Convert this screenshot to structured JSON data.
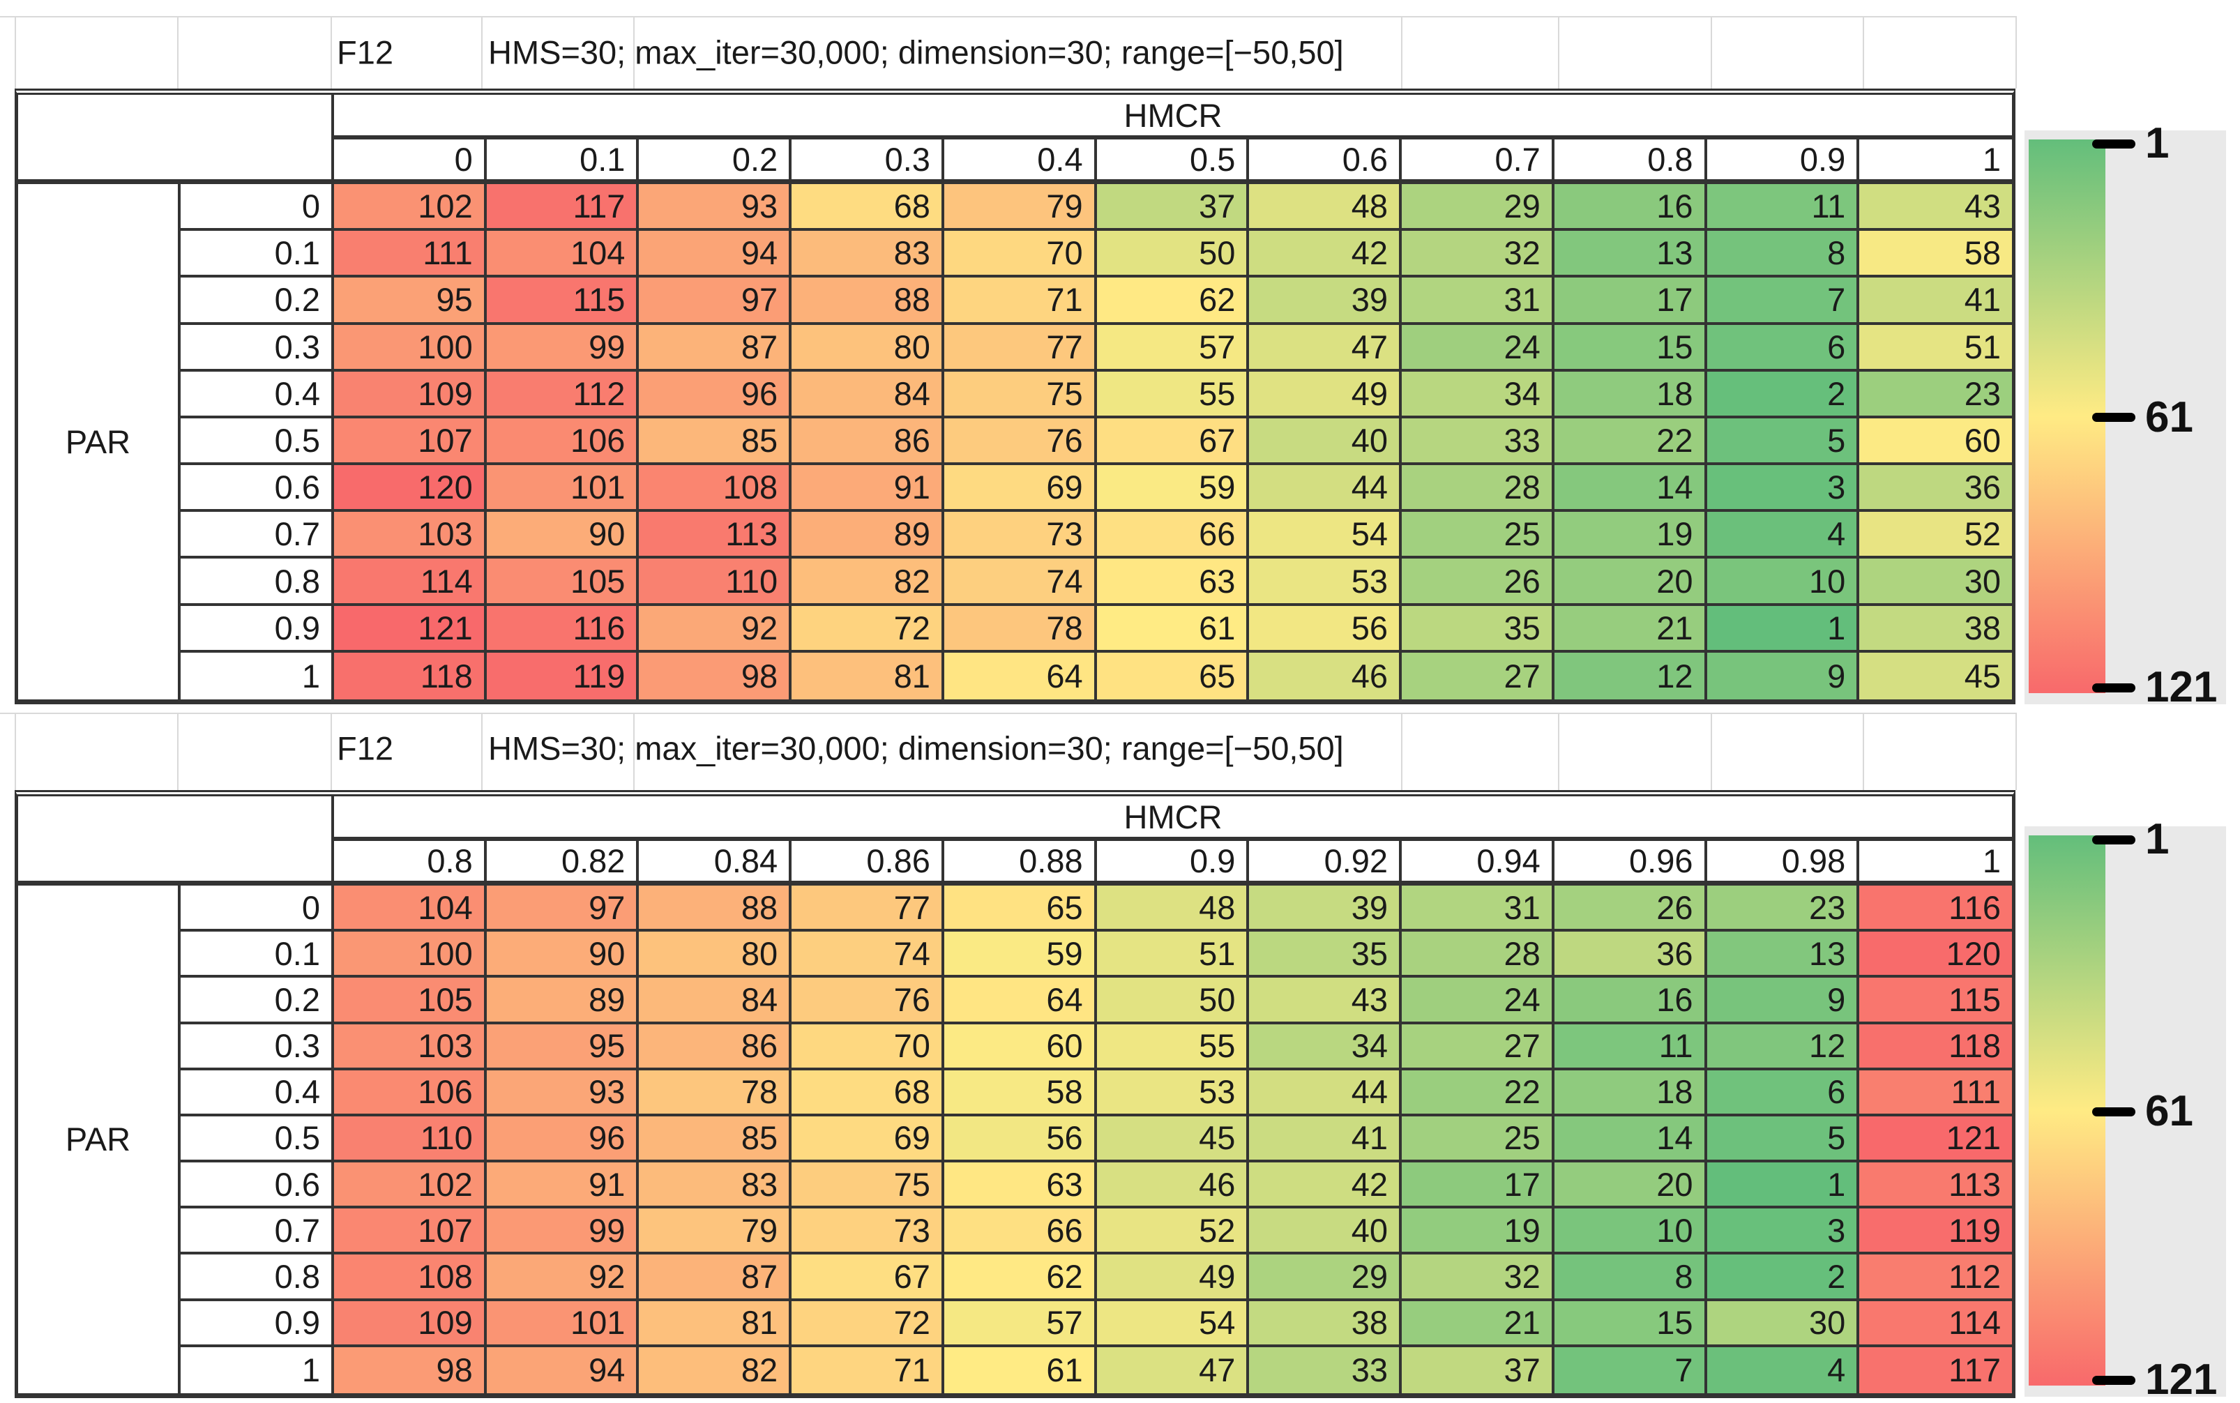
{
  "tables": [
    {
      "code": "F12",
      "params": "HMS=30; max_iter=30,000; dimension=30; range=[−50,50]"
    },
    {
      "code": "F12",
      "params": "HMS=30; max_iter=30,000; dimension=30; range=[−50,50]"
    }
  ],
  "legend": {
    "ticks": [
      "1",
      "61",
      "121"
    ]
  },
  "colors": {
    "border": "#333333",
    "grid_faint": "#d9d9d9",
    "legend_panel": "#e9e9e9",
    "scale_min_color": "#63BE7B",
    "scale_mid_color": "#FFEB84",
    "scale_max_color": "#F8696B"
  },
  "chart_data": [
    {
      "type": "heatmap",
      "title": "F12",
      "subtitle": "HMS=30; max_iter=30,000; dimension=30; range=[−50,50]",
      "xlabel": "HMCR",
      "ylabel": "PAR",
      "x": [
        "0",
        "0.1",
        "0.2",
        "0.3",
        "0.4",
        "0.5",
        "0.6",
        "0.7",
        "0.8",
        "0.9",
        "1"
      ],
      "y": [
        "0",
        "0.1",
        "0.2",
        "0.3",
        "0.4",
        "0.5",
        "0.6",
        "0.7",
        "0.8",
        "0.9",
        "1"
      ],
      "values": [
        [
          102,
          117,
          93,
          68,
          79,
          37,
          48,
          29,
          16,
          11,
          43
        ],
        [
          111,
          104,
          94,
          83,
          70,
          50,
          42,
          32,
          13,
          8,
          58
        ],
        [
          95,
          115,
          97,
          88,
          71,
          62,
          39,
          31,
          17,
          7,
          41
        ],
        [
          100,
          99,
          87,
          80,
          77,
          57,
          47,
          24,
          15,
          6,
          51
        ],
        [
          109,
          112,
          96,
          84,
          75,
          55,
          49,
          34,
          18,
          2,
          23
        ],
        [
          107,
          106,
          85,
          86,
          76,
          67,
          40,
          33,
          22,
          5,
          60
        ],
        [
          120,
          101,
          108,
          91,
          69,
          59,
          44,
          28,
          14,
          3,
          36
        ],
        [
          103,
          90,
          113,
          89,
          73,
          66,
          54,
          25,
          19,
          4,
          52
        ],
        [
          114,
          105,
          110,
          82,
          74,
          63,
          53,
          26,
          20,
          10,
          30
        ],
        [
          121,
          116,
          92,
          72,
          78,
          61,
          56,
          35,
          21,
          1,
          38
        ],
        [
          118,
          119,
          98,
          81,
          64,
          65,
          46,
          27,
          12,
          9,
          45
        ]
      ],
      "color_scale": {
        "domain": [
          1,
          61,
          121
        ],
        "min_color": "#63BE7B",
        "mid_color": "#FFEB84",
        "max_color": "#F8696B"
      },
      "legend_ticks": [
        1,
        61,
        121
      ],
      "legend_position": "right"
    },
    {
      "type": "heatmap",
      "title": "F12",
      "subtitle": "HMS=30; max_iter=30,000; dimension=30; range=[−50,50]",
      "xlabel": "HMCR",
      "ylabel": "PAR",
      "x": [
        "0.8",
        "0.82",
        "0.84",
        "0.86",
        "0.88",
        "0.9",
        "0.92",
        "0.94",
        "0.96",
        "0.98",
        "1"
      ],
      "y": [
        "0",
        "0.1",
        "0.2",
        "0.3",
        "0.4",
        "0.5",
        "0.6",
        "0.7",
        "0.8",
        "0.9",
        "1"
      ],
      "values": [
        [
          104,
          97,
          88,
          77,
          65,
          48,
          39,
          31,
          26,
          23,
          116
        ],
        [
          100,
          90,
          80,
          74,
          59,
          51,
          35,
          28,
          36,
          13,
          120
        ],
        [
          105,
          89,
          84,
          76,
          64,
          50,
          43,
          24,
          16,
          9,
          115
        ],
        [
          103,
          95,
          86,
          70,
          60,
          55,
          34,
          27,
          11,
          12,
          118
        ],
        [
          106,
          93,
          78,
          68,
          58,
          53,
          44,
          22,
          18,
          6,
          111
        ],
        [
          110,
          96,
          85,
          69,
          56,
          45,
          41,
          25,
          14,
          5,
          121
        ],
        [
          102,
          91,
          83,
          75,
          63,
          46,
          42,
          17,
          20,
          1,
          113
        ],
        [
          107,
          99,
          79,
          73,
          66,
          52,
          40,
          19,
          10,
          3,
          119
        ],
        [
          108,
          92,
          87,
          67,
          62,
          49,
          29,
          32,
          8,
          2,
          112
        ],
        [
          109,
          101,
          81,
          72,
          57,
          54,
          38,
          21,
          15,
          30,
          114
        ],
        [
          98,
          94,
          82,
          71,
          61,
          47,
          33,
          37,
          7,
          4,
          117
        ]
      ],
      "color_scale": {
        "domain": [
          1,
          61,
          121
        ],
        "min_color": "#63BE7B",
        "mid_color": "#FFEB84",
        "max_color": "#F8696B"
      },
      "legend_ticks": [
        1,
        61,
        121
      ],
      "legend_position": "right"
    }
  ]
}
